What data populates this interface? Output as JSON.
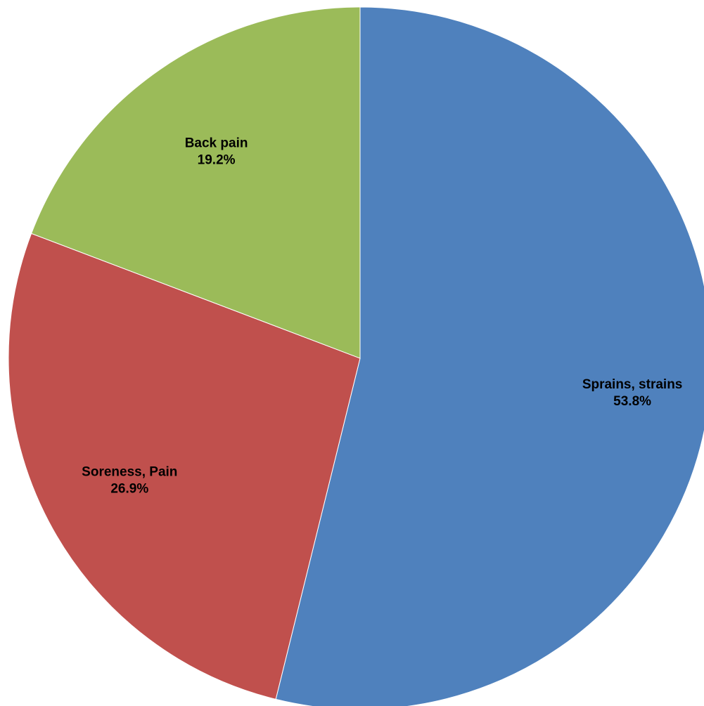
{
  "chart_data": {
    "type": "pie",
    "start_angle": "12 o'clock",
    "direction": "clockwise",
    "legend": "none",
    "slices": [
      {
        "name": "Sprains, strains",
        "value": 53.8,
        "label": "53.8%",
        "color": "#4F81BD"
      },
      {
        "name": "Soreness, Pain",
        "value": 26.9,
        "label": "26.9%",
        "color": "#C0504D"
      },
      {
        "name": "Back pain",
        "value": 19.2,
        "label": "19.2%",
        "color": "#9BBB59"
      }
    ]
  }
}
